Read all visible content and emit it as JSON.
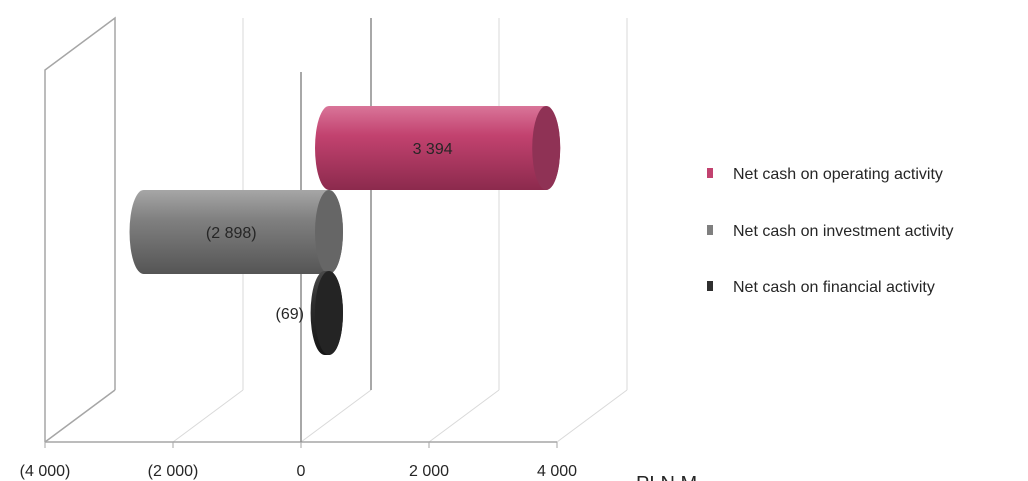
{
  "chart_data": {
    "type": "bar",
    "orientation": "horizontal",
    "style": "3d-cylinder",
    "x_unit": "PLN M",
    "xlim": [
      -4000,
      4000
    ],
    "x_ticks": [
      -4000,
      -2000,
      0,
      2000,
      4000
    ],
    "x_tick_labels": [
      "(4 000)",
      "(2 000)",
      "0",
      "2 000",
      "4 000"
    ],
    "legend_position": "right",
    "grid": true,
    "series": [
      {
        "name": "Net cash on operating activity",
        "value": 3394,
        "label": "3 394",
        "color": "#c2426f"
      },
      {
        "name": "Net cash on investment activity",
        "value": -2898,
        "label": "(2 898)",
        "color": "#7f7f7f"
      },
      {
        "name": "Net cash on financial activity",
        "value": -69,
        "label": "(69)",
        "color": "#2f2f2f"
      }
    ]
  }
}
